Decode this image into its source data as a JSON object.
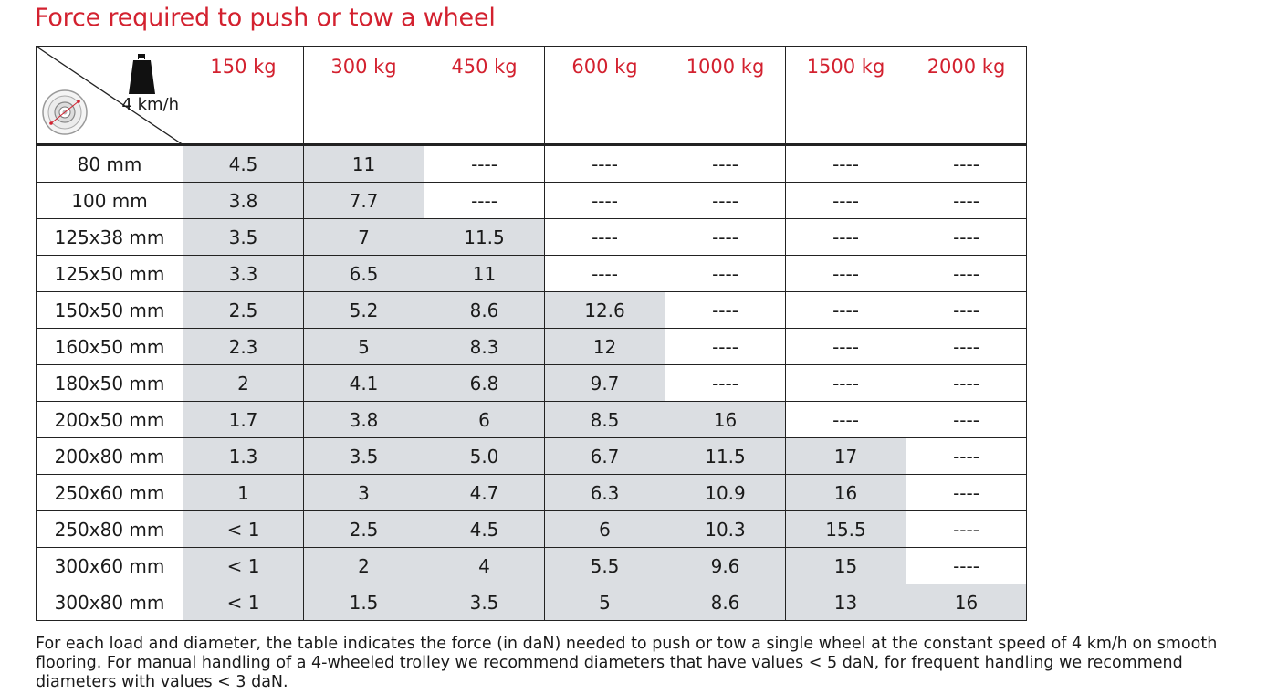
{
  "title": "Force required to push or tow a wheel",
  "corner": {
    "speed_label": "4 km/h",
    "weight_icon": "weight-icon",
    "wheel_icon": "wheel-icon"
  },
  "columns": [
    "150 kg",
    "300 kg",
    "450 kg",
    "600 kg",
    "1000 kg",
    "1500 kg",
    "2000 kg"
  ],
  "rows": [
    {
      "label": "80 mm",
      "values": [
        "4.5",
        "11",
        "----",
        "----",
        "----",
        "----",
        "----"
      ],
      "shaded_count": 2
    },
    {
      "label": "100 mm",
      "values": [
        "3.8",
        "7.7",
        "----",
        "----",
        "----",
        "----",
        "----"
      ],
      "shaded_count": 2
    },
    {
      "label": "125x38 mm",
      "values": [
        "3.5",
        "7",
        "11.5",
        "----",
        "----",
        "----",
        "----"
      ],
      "shaded_count": 3
    },
    {
      "label": "125x50 mm",
      "values": [
        "3.3",
        "6.5",
        "11",
        "----",
        "----",
        "----",
        "----"
      ],
      "shaded_count": 3
    },
    {
      "label": "150x50 mm",
      "values": [
        "2.5",
        "5.2",
        "8.6",
        "12.6",
        "----",
        "----",
        "----"
      ],
      "shaded_count": 4
    },
    {
      "label": "160x50 mm",
      "values": [
        "2.3",
        "5",
        "8.3",
        "12",
        "----",
        "----",
        "----"
      ],
      "shaded_count": 4
    },
    {
      "label": "180x50 mm",
      "values": [
        "2",
        "4.1",
        "6.8",
        "9.7",
        "----",
        "----",
        "----"
      ],
      "shaded_count": 4
    },
    {
      "label": "200x50 mm",
      "values": [
        "1.7",
        "3.8",
        "6",
        "8.5",
        "16",
        "----",
        "----"
      ],
      "shaded_count": 5
    },
    {
      "label": "200x80 mm",
      "values": [
        "1.3",
        "3.5",
        "5.0",
        "6.7",
        "11.5",
        "17",
        "----"
      ],
      "shaded_count": 6
    },
    {
      "label": "250x60 mm",
      "values": [
        "1",
        "3",
        "4.7",
        "6.3",
        "10.9",
        "16",
        "----"
      ],
      "shaded_count": 6
    },
    {
      "label": "250x80 mm",
      "values": [
        "< 1",
        "2.5",
        "4.5",
        "6",
        "10.3",
        "15.5",
        "----"
      ],
      "shaded_count": 6
    },
    {
      "label": "300x60 mm",
      "values": [
        "< 1",
        "2",
        "4",
        "5.5",
        "9.6",
        "15",
        "----"
      ],
      "shaded_count": 6
    },
    {
      "label": "300x80 mm",
      "values": [
        "< 1",
        "1.5",
        "3.5",
        "5",
        "8.6",
        "13",
        "16"
      ],
      "shaded_count": 7
    }
  ],
  "colors": {
    "accent": "#d3212f",
    "shade": "#dbdee2",
    "border": "#222222"
  },
  "note": "For each load and diameter, the table indicates the force (in daN) needed to push or tow a single wheel at the constant speed of 4 km/h on smooth flooring. For manual handling of a 4-wheeled trolley we recommend diameters that have values < 5 daN, for frequent handling we recommend diameters with values < 3 daN."
}
